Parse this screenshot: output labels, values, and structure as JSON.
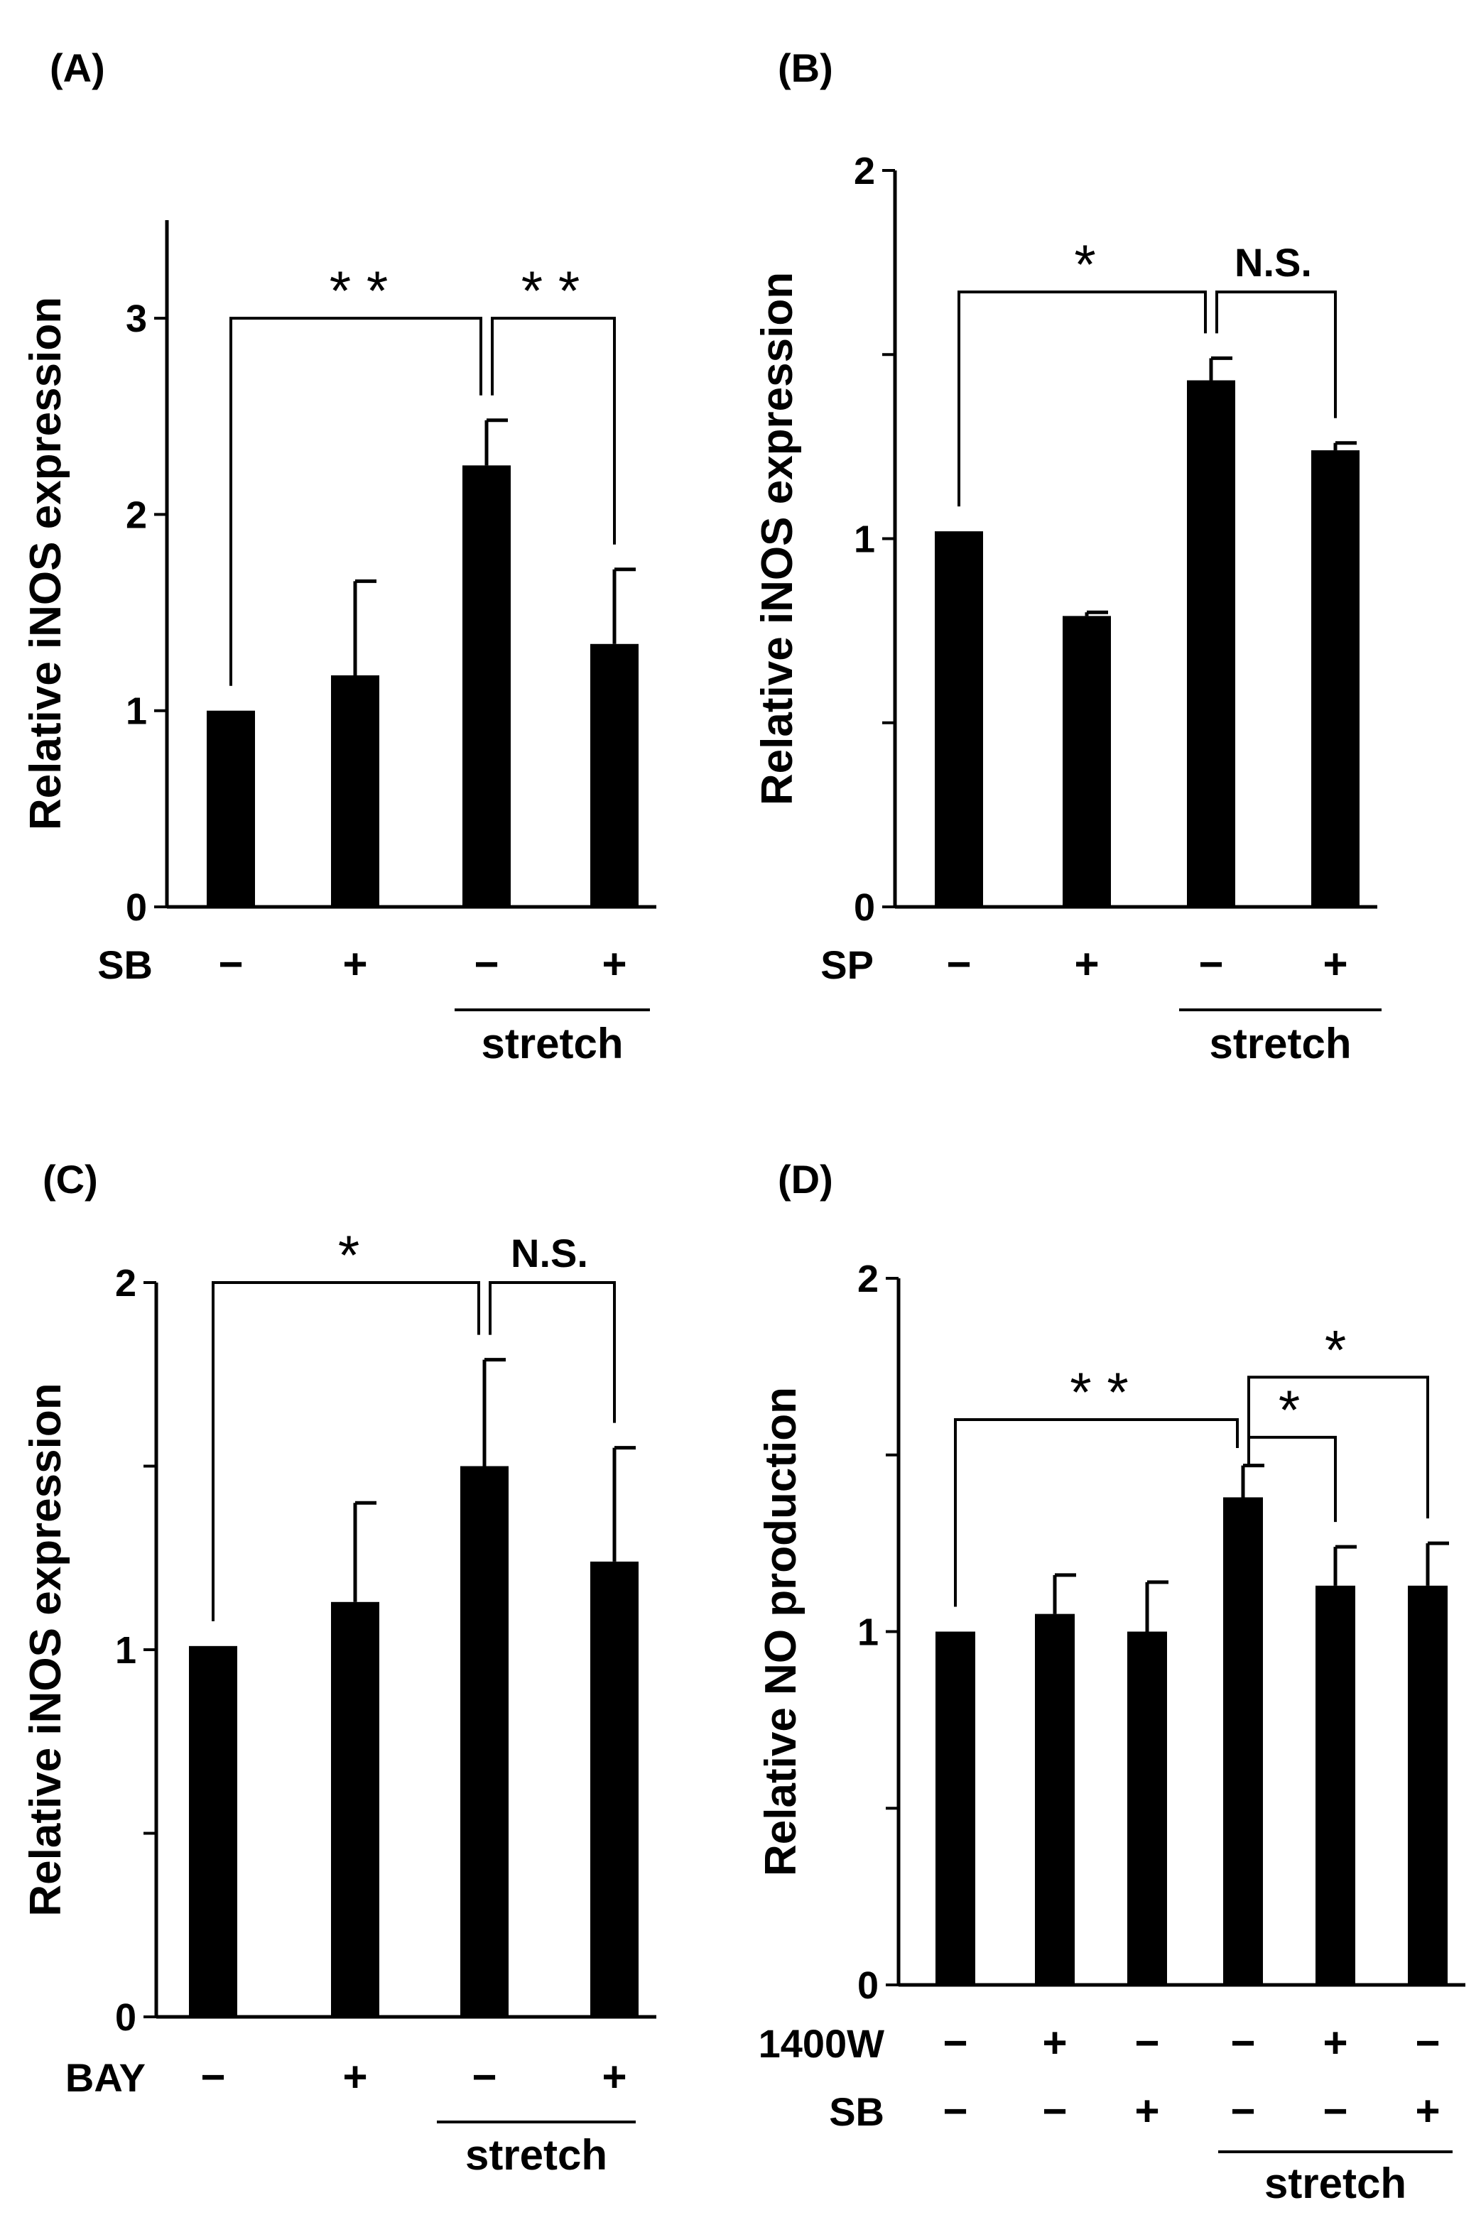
{
  "chart_data": [
    {
      "panel": "(A)",
      "type": "bar",
      "ylabel": "Relative iNOS expression",
      "ylim": [
        0,
        3.5
      ],
      "yticks": [
        0,
        1,
        2,
        3
      ],
      "ytick_labels": [
        "0",
        "1",
        "2",
        "3"
      ],
      "values": [
        1.0,
        1.18,
        2.25,
        1.34
      ],
      "errors": [
        0.0,
        0.48,
        0.23,
        0.38
      ],
      "conditions": [
        {
          "label": "SB",
          "signs": [
            "−",
            "+",
            "−",
            "+"
          ]
        }
      ],
      "stretch_label": "stretch",
      "stretch_groups": [
        2,
        3
      ],
      "comparisons": [
        {
          "from": 0,
          "to": 2,
          "label": "* *",
          "y": 3.0
        },
        {
          "from": 2,
          "to": 3,
          "label": "* *",
          "y": 3.0
        }
      ]
    },
    {
      "panel": "(B)",
      "type": "bar",
      "ylabel": "Relative iNOS expression",
      "ylim": [
        0,
        2
      ],
      "yticks": [
        0,
        0.5,
        1,
        1.5,
        2
      ],
      "ytick_labels": [
        "0",
        "",
        "1",
        "",
        "2"
      ],
      "values": [
        1.02,
        0.79,
        1.43,
        1.24
      ],
      "errors": [
        0.0,
        0.01,
        0.06,
        0.02
      ],
      "conditions": [
        {
          "label": "SP",
          "signs": [
            "−",
            "+",
            "−",
            "+"
          ]
        }
      ],
      "stretch_label": "stretch",
      "stretch_groups": [
        2,
        3
      ],
      "comparisons": [
        {
          "from": 0,
          "to": 2,
          "label": "*",
          "y": 1.67
        },
        {
          "from": 2,
          "to": 3,
          "label": "N.S.",
          "y": 1.67
        }
      ]
    },
    {
      "panel": "(C)",
      "type": "bar",
      "ylabel": "Relative iNOS expression",
      "ylim": [
        0,
        2
      ],
      "yticks": [
        0,
        0.5,
        1,
        1.5,
        2
      ],
      "ytick_labels": [
        "0",
        "",
        "1",
        "",
        "2"
      ],
      "values": [
        1.01,
        1.13,
        1.5,
        1.24
      ],
      "errors": [
        0.0,
        0.27,
        0.29,
        0.31
      ],
      "conditions": [
        {
          "label": "BAY",
          "signs": [
            "−",
            "+",
            "−",
            "+"
          ]
        }
      ],
      "stretch_label": "stretch",
      "stretch_groups": [
        2,
        3
      ],
      "comparisons": [
        {
          "from": 0,
          "to": 2,
          "label": "*",
          "y": 2.0
        },
        {
          "from": 2,
          "to": 3,
          "label": "N.S.",
          "y": 2.0
        }
      ]
    },
    {
      "panel": "(D)",
      "type": "bar",
      "ylabel": "Relative NO production",
      "ylim": [
        0,
        2
      ],
      "yticks": [
        0,
        0.5,
        1,
        1.5,
        2
      ],
      "ytick_labels": [
        "0",
        "",
        "1",
        "",
        "2"
      ],
      "values": [
        1.0,
        1.05,
        1.0,
        1.38,
        1.13,
        1.13
      ],
      "errors": [
        0.0,
        0.11,
        0.14,
        0.09,
        0.11,
        0.12
      ],
      "conditions": [
        {
          "label": "1400W",
          "signs": [
            "−",
            "+",
            "−",
            "−",
            "+",
            "−"
          ]
        },
        {
          "label": "SB",
          "signs": [
            "−",
            "−",
            "+",
            "−",
            "−",
            "+"
          ]
        }
      ],
      "stretch_label": "stretch",
      "stretch_groups": [
        3,
        5
      ],
      "comparisons": [
        {
          "from": 0,
          "to": 3,
          "label": "* *",
          "y": 1.6
        },
        {
          "from": 3,
          "to": 4,
          "label": "*",
          "y": 1.55
        },
        {
          "from": 3,
          "to": 5,
          "label": "*",
          "y": 1.72
        }
      ]
    }
  ]
}
